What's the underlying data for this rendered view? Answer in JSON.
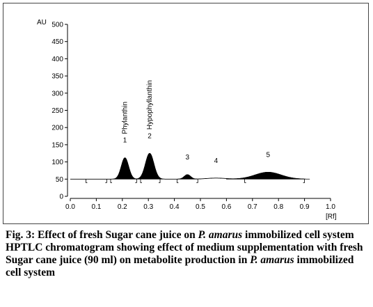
{
  "chart_data": {
    "type": "area",
    "ylabel": "AU",
    "xlabel": "[Rf]",
    "ylim": [
      0,
      500
    ],
    "xlim": [
      0.0,
      1.0
    ],
    "y_ticks": [
      0,
      50,
      100,
      150,
      200,
      250,
      300,
      350,
      400,
      450,
      500
    ],
    "x_ticks": [
      "0.0",
      "0.1",
      "0.2",
      "0.3",
      "0.4",
      "0.5",
      "0.6",
      "0.7",
      "0.8",
      "0.9",
      "1.0"
    ],
    "baseline": 50,
    "peaks": [
      {
        "number": "1",
        "compound": "Phylanthin",
        "rf": 0.21,
        "height": 112
      },
      {
        "number": "2",
        "compound": "Hypophyllanthin",
        "rf": 0.305,
        "height": 125
      },
      {
        "number": "3",
        "compound": "",
        "rf": 0.45,
        "height": 63
      },
      {
        "number": "4",
        "compound": "",
        "rf": 0.56,
        "height": 53
      },
      {
        "number": "5",
        "compound": "",
        "rf": 0.76,
        "height": 70
      }
    ]
  },
  "caption": {
    "line1_prefix": "Fig. 3: Effect of fresh Sugar cane juice on ",
    "line1_species": "P. amarus",
    "line1_suffix": " immobilized cell system",
    "line2_prefix": "HPTLC chromatogram showing effect of medium supplementation with fresh Sugar cane juice (90 ml) on metabolite production in ",
    "line2_species": "P. amarus",
    "line2_suffix": " immobilized cell system"
  }
}
